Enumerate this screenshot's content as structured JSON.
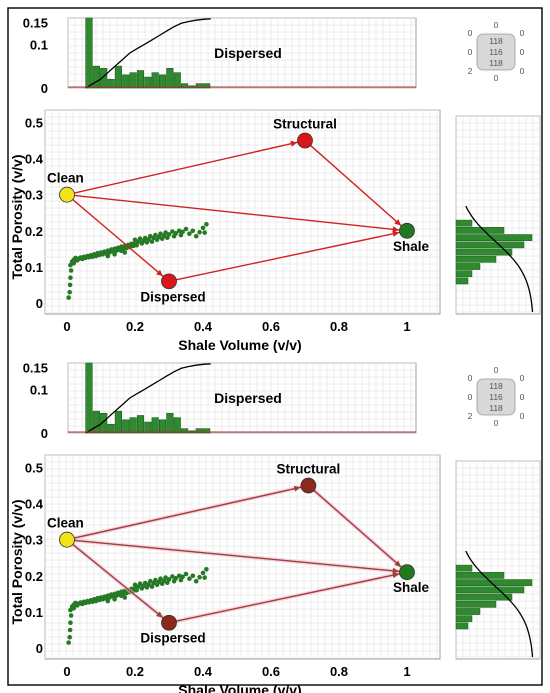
{
  "colors": {
    "grid": "#dcdcdc",
    "bar_fill": "#2f8a2f",
    "bar_stroke": "#1e5a1e",
    "point": "#267a26",
    "line_top": "#d22020",
    "line_bottom": "#a04030",
    "cdf": "#000000",
    "clean": "#f2e21a",
    "dispersed_top": "#d81818",
    "dispersed_bottom": "#8b2a1a",
    "structural_top": "#d81818",
    "structural_bottom": "#8b2a1a",
    "shale": "#1f7a1f",
    "baseline": "#b03030"
  },
  "icons": [
    "quadrant-counter-icon",
    "quadrant-counter-icon"
  ],
  "chart_data": [
    {
      "type": "scatter",
      "panel": "top",
      "xlabel": "Shale Volume (v/v)",
      "ylabel": "Total Porosity (v/v)",
      "xlim": [
        -0.05,
        1.05
      ],
      "ylim": [
        -0.02,
        0.52
      ],
      "xticks": [
        "0",
        "0.2",
        "0.4",
        "0.6",
        "0.8",
        "1"
      ],
      "yticks": [
        "0",
        "0.1",
        "0.2",
        "0.3",
        "0.4",
        "0.5"
      ],
      "grid": true,
      "model_points": [
        {
          "label": "Clean",
          "x": 0.0,
          "y": 0.3
        },
        {
          "label": "Structural",
          "x": 0.7,
          "y": 0.45
        },
        {
          "label": "Shale",
          "x": 1.0,
          "y": 0.2
        },
        {
          "label": "Dispersed",
          "x": 0.3,
          "y": 0.06
        }
      ],
      "model_lines": [
        [
          "Clean",
          "Structural"
        ],
        [
          "Structural",
          "Shale"
        ],
        [
          "Clean",
          "Shale"
        ],
        [
          "Clean",
          "Dispersed"
        ],
        [
          "Dispersed",
          "Shale"
        ]
      ],
      "points": [
        [
          0.005,
          0.015
        ],
        [
          0.008,
          0.03
        ],
        [
          0.009,
          0.05
        ],
        [
          0.01,
          0.07
        ],
        [
          0.012,
          0.09
        ],
        [
          0.01,
          0.105
        ],
        [
          0.015,
          0.115
        ],
        [
          0.02,
          0.12
        ],
        [
          0.02,
          0.11
        ],
        [
          0.025,
          0.125
        ],
        [
          0.03,
          0.118
        ],
        [
          0.035,
          0.123
        ],
        [
          0.04,
          0.126
        ],
        [
          0.045,
          0.122
        ],
        [
          0.05,
          0.128
        ],
        [
          0.055,
          0.125
        ],
        [
          0.06,
          0.13
        ],
        [
          0.065,
          0.127
        ],
        [
          0.07,
          0.132
        ],
        [
          0.075,
          0.128
        ],
        [
          0.08,
          0.135
        ],
        [
          0.085,
          0.13
        ],
        [
          0.09,
          0.138
        ],
        [
          0.095,
          0.133
        ],
        [
          0.1,
          0.14
        ],
        [
          0.105,
          0.135
        ],
        [
          0.11,
          0.142
        ],
        [
          0.115,
          0.137
        ],
        [
          0.12,
          0.145
        ],
        [
          0.125,
          0.14
        ],
        [
          0.13,
          0.148
        ],
        [
          0.135,
          0.143
        ],
        [
          0.14,
          0.15
        ],
        [
          0.145,
          0.145
        ],
        [
          0.15,
          0.153
        ],
        [
          0.155,
          0.147
        ],
        [
          0.16,
          0.156
        ],
        [
          0.165,
          0.15
        ],
        [
          0.17,
          0.158
        ],
        [
          0.175,
          0.152
        ],
        [
          0.18,
          0.161
        ],
        [
          0.185,
          0.155
        ],
        [
          0.19,
          0.164
        ],
        [
          0.195,
          0.158
        ],
        [
          0.2,
          0.166
        ],
        [
          0.2,
          0.175
        ],
        [
          0.205,
          0.16
        ],
        [
          0.21,
          0.17
        ],
        [
          0.215,
          0.178
        ],
        [
          0.22,
          0.165
        ],
        [
          0.225,
          0.172
        ],
        [
          0.23,
          0.18
        ],
        [
          0.235,
          0.168
        ],
        [
          0.24,
          0.176
        ],
        [
          0.245,
          0.185
        ],
        [
          0.25,
          0.17
        ],
        [
          0.255,
          0.18
        ],
        [
          0.26,
          0.188
        ],
        [
          0.265,
          0.175
        ],
        [
          0.27,
          0.183
        ],
        [
          0.275,
          0.192
        ],
        [
          0.28,
          0.178
        ],
        [
          0.285,
          0.186
        ],
        [
          0.29,
          0.195
        ],
        [
          0.295,
          0.181
        ],
        [
          0.3,
          0.19
        ],
        [
          0.31,
          0.198
        ],
        [
          0.315,
          0.185
        ],
        [
          0.32,
          0.193
        ],
        [
          0.33,
          0.2
        ],
        [
          0.335,
          0.188
        ],
        [
          0.34,
          0.197
        ],
        [
          0.35,
          0.205
        ],
        [
          0.36,
          0.192
        ],
        [
          0.37,
          0.2
        ],
        [
          0.38,
          0.185
        ],
        [
          0.39,
          0.196
        ],
        [
          0.4,
          0.208
        ],
        [
          0.405,
          0.195
        ],
        [
          0.41,
          0.218
        ],
        [
          0.16,
          0.145
        ],
        [
          0.17,
          0.14
        ],
        [
          0.12,
          0.13
        ],
        [
          0.14,
          0.135
        ]
      ],
      "histogram_top": {
        "label": "Dispersed",
        "yticks": [
          "0",
          "0.1",
          "0.15"
        ],
        "ylim": [
          0,
          0.16
        ],
        "bins": [
          0.0,
          0.025,
          0.05,
          0.075,
          0.1,
          0.125,
          0.15,
          0.175,
          0.2,
          0.225,
          0.25,
          0.275,
          0.3,
          0.325,
          0.35,
          0.375,
          0.4
        ],
        "values": [
          0.16,
          0.05,
          0.045,
          0.02,
          0.05,
          0.03,
          0.035,
          0.04,
          0.025,
          0.035,
          0.03,
          0.045,
          0.035,
          0.01,
          0.005,
          0.01,
          0.01
        ],
        "cdf": [
          0.0,
          0.01,
          0.02,
          0.035,
          0.05,
          0.065,
          0.08,
          0.09,
          0.1,
          0.11,
          0.12,
          0.13,
          0.14,
          0.148,
          0.152,
          0.155,
          0.157,
          0.158
        ]
      },
      "histogram_side": {
        "bins": [
          0.06,
          0.08,
          0.1,
          0.12,
          0.14,
          0.16,
          0.18,
          0.2,
          0.22
        ],
        "values": [
          0.15,
          0.2,
          0.3,
          0.5,
          0.7,
          0.85,
          0.95,
          0.6,
          0.2
        ]
      }
    },
    {
      "type": "scatter",
      "panel": "bottom",
      "xlabel": "Shale Volume (v/v)",
      "ylabel": "Total Porosity (v/v)",
      "xlim": [
        -0.05,
        1.05
      ],
      "ylim": [
        -0.02,
        0.52
      ],
      "xticks": [
        "0",
        "0.2",
        "0.4",
        "0.6",
        "0.8",
        "1"
      ],
      "yticks": [
        "0",
        "0.1",
        "0.2",
        "0.3",
        "0.4",
        "0.5"
      ],
      "grid": true,
      "model_points": [
        {
          "label": "Clean",
          "x": 0.0,
          "y": 0.3
        },
        {
          "label": "Structural",
          "x": 0.71,
          "y": 0.45
        },
        {
          "label": "Shale",
          "x": 1.0,
          "y": 0.21
        },
        {
          "label": "Dispersed",
          "x": 0.3,
          "y": 0.07
        }
      ],
      "model_lines": [
        [
          "Clean",
          "Structural"
        ],
        [
          "Structural",
          "Shale"
        ],
        [
          "Clean",
          "Shale"
        ],
        [
          "Clean",
          "Dispersed"
        ],
        [
          "Dispersed",
          "Shale"
        ]
      ],
      "points": [
        [
          0.005,
          0.015
        ],
        [
          0.008,
          0.03
        ],
        [
          0.009,
          0.05
        ],
        [
          0.01,
          0.07
        ],
        [
          0.012,
          0.09
        ],
        [
          0.01,
          0.105
        ],
        [
          0.015,
          0.115
        ],
        [
          0.02,
          0.12
        ],
        [
          0.02,
          0.11
        ],
        [
          0.025,
          0.125
        ],
        [
          0.03,
          0.118
        ],
        [
          0.035,
          0.123
        ],
        [
          0.04,
          0.126
        ],
        [
          0.045,
          0.122
        ],
        [
          0.05,
          0.128
        ],
        [
          0.055,
          0.125
        ],
        [
          0.06,
          0.13
        ],
        [
          0.065,
          0.127
        ],
        [
          0.07,
          0.132
        ],
        [
          0.075,
          0.128
        ],
        [
          0.08,
          0.135
        ],
        [
          0.085,
          0.13
        ],
        [
          0.09,
          0.138
        ],
        [
          0.095,
          0.133
        ],
        [
          0.1,
          0.14
        ],
        [
          0.105,
          0.135
        ],
        [
          0.11,
          0.142
        ],
        [
          0.115,
          0.137
        ],
        [
          0.12,
          0.145
        ],
        [
          0.125,
          0.14
        ],
        [
          0.13,
          0.148
        ],
        [
          0.135,
          0.143
        ],
        [
          0.14,
          0.15
        ],
        [
          0.145,
          0.145
        ],
        [
          0.15,
          0.153
        ],
        [
          0.155,
          0.147
        ],
        [
          0.16,
          0.156
        ],
        [
          0.165,
          0.15
        ],
        [
          0.17,
          0.158
        ],
        [
          0.175,
          0.152
        ],
        [
          0.18,
          0.161
        ],
        [
          0.185,
          0.155
        ],
        [
          0.19,
          0.164
        ],
        [
          0.195,
          0.158
        ],
        [
          0.2,
          0.166
        ],
        [
          0.2,
          0.175
        ],
        [
          0.205,
          0.16
        ],
        [
          0.21,
          0.17
        ],
        [
          0.215,
          0.178
        ],
        [
          0.22,
          0.165
        ],
        [
          0.225,
          0.172
        ],
        [
          0.23,
          0.18
        ],
        [
          0.235,
          0.168
        ],
        [
          0.24,
          0.176
        ],
        [
          0.245,
          0.185
        ],
        [
          0.25,
          0.17
        ],
        [
          0.255,
          0.18
        ],
        [
          0.26,
          0.188
        ],
        [
          0.265,
          0.175
        ],
        [
          0.27,
          0.183
        ],
        [
          0.275,
          0.192
        ],
        [
          0.28,
          0.178
        ],
        [
          0.285,
          0.186
        ],
        [
          0.29,
          0.195
        ],
        [
          0.295,
          0.181
        ],
        [
          0.3,
          0.19
        ],
        [
          0.31,
          0.198
        ],
        [
          0.315,
          0.185
        ],
        [
          0.32,
          0.193
        ],
        [
          0.33,
          0.2
        ],
        [
          0.335,
          0.188
        ],
        [
          0.34,
          0.197
        ],
        [
          0.35,
          0.205
        ],
        [
          0.36,
          0.192
        ],
        [
          0.37,
          0.2
        ],
        [
          0.38,
          0.185
        ],
        [
          0.39,
          0.196
        ],
        [
          0.4,
          0.208
        ],
        [
          0.405,
          0.195
        ],
        [
          0.41,
          0.218
        ],
        [
          0.16,
          0.145
        ],
        [
          0.17,
          0.14
        ],
        [
          0.12,
          0.13
        ],
        [
          0.14,
          0.135
        ]
      ],
      "histogram_top": {
        "label": "Dispersed",
        "yticks": [
          "0",
          "0.1",
          "0.15"
        ],
        "ylim": [
          0,
          0.16
        ],
        "bins": [
          0.0,
          0.025,
          0.05,
          0.075,
          0.1,
          0.125,
          0.15,
          0.175,
          0.2,
          0.225,
          0.25,
          0.275,
          0.3,
          0.325,
          0.35,
          0.375,
          0.4
        ],
        "values": [
          0.16,
          0.05,
          0.045,
          0.02,
          0.05,
          0.03,
          0.035,
          0.04,
          0.025,
          0.035,
          0.03,
          0.045,
          0.035,
          0.01,
          0.005,
          0.01,
          0.01
        ],
        "cdf": [
          0.0,
          0.01,
          0.02,
          0.035,
          0.05,
          0.065,
          0.08,
          0.09,
          0.1,
          0.11,
          0.12,
          0.13,
          0.14,
          0.148,
          0.152,
          0.155,
          0.157,
          0.158
        ]
      },
      "histogram_side": {
        "bins": [
          0.06,
          0.08,
          0.1,
          0.12,
          0.14,
          0.16,
          0.18,
          0.2,
          0.22
        ],
        "values": [
          0.15,
          0.2,
          0.3,
          0.5,
          0.7,
          0.85,
          0.95,
          0.6,
          0.2
        ]
      }
    }
  ],
  "quadrant_counts": [
    {
      "top": "0",
      "left_top": "0",
      "right_top": "0",
      "center": [
        "118",
        "116",
        "118"
      ],
      "left_mid": "0",
      "right_mid": "0",
      "left_bottom": "2",
      "right_bottom": "0",
      "bottom": "0"
    },
    {
      "top": "0",
      "left_top": "0",
      "right_top": "0",
      "center": [
        "118",
        "116",
        "118"
      ],
      "left_mid": "0",
      "right_mid": "0",
      "left_bottom": "2",
      "right_bottom": "0",
      "bottom": "0"
    }
  ]
}
